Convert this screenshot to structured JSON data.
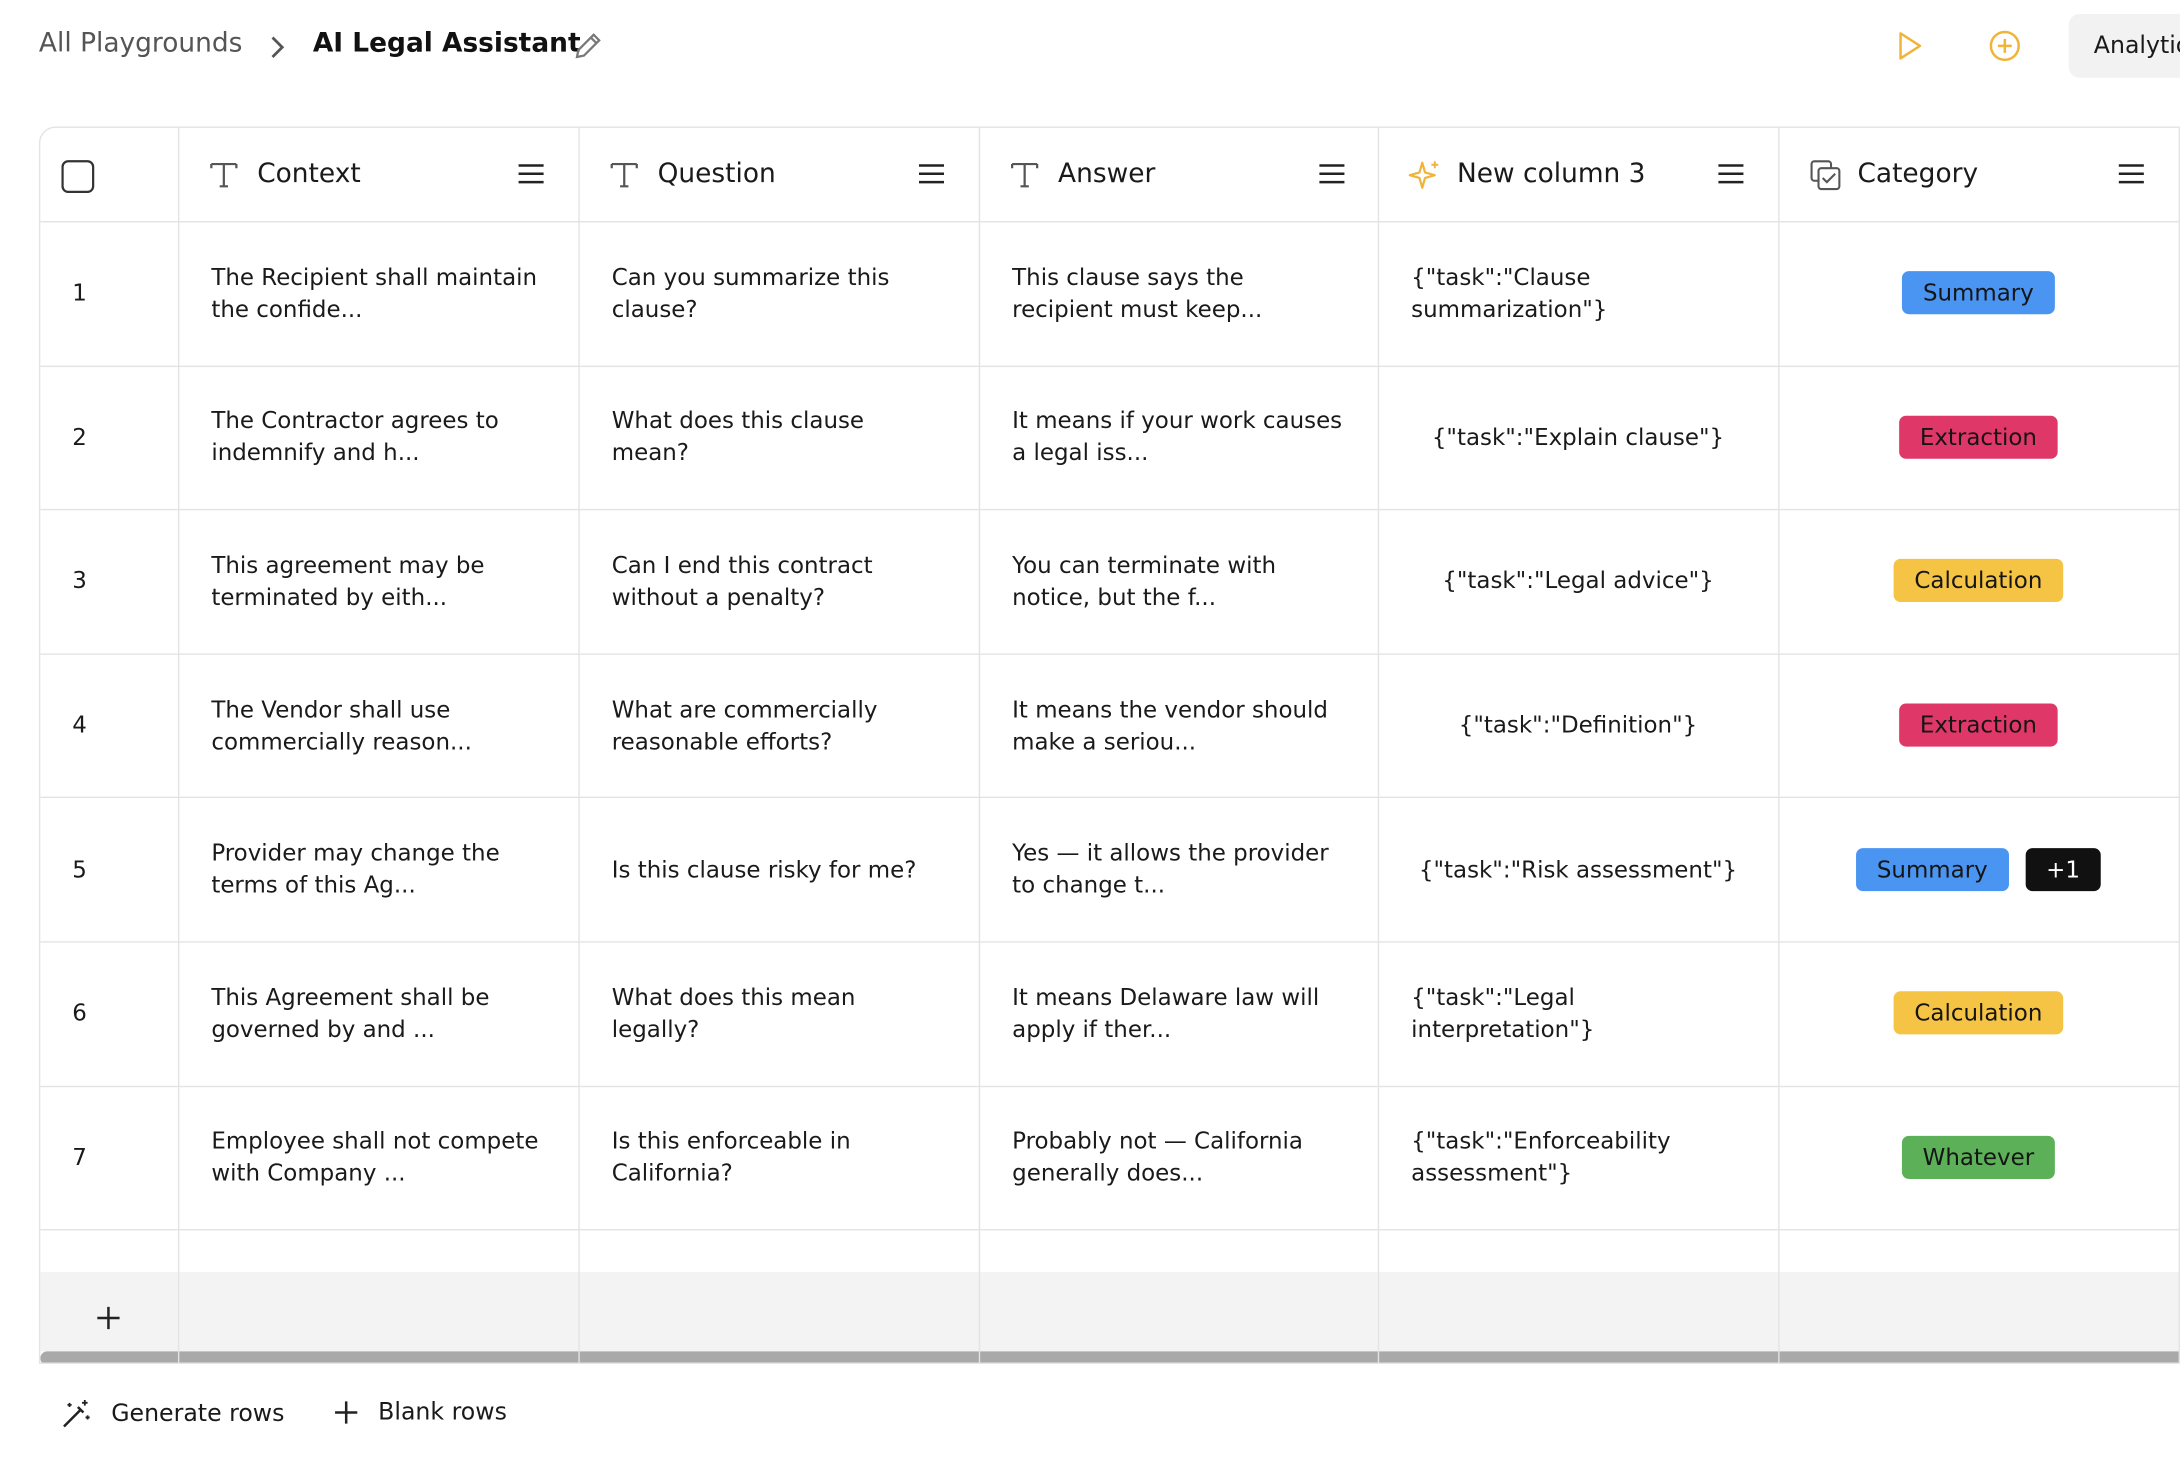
{
  "header": {
    "breadcrumb": "All Playgrounds",
    "title": "AI Legal Assistant",
    "button": "Analytic"
  },
  "table": {
    "columns": [
      "Context",
      "Question",
      "Answer",
      "New column 3",
      "Category"
    ],
    "rows": [
      {
        "number": "1",
        "context": "The Recipient shall maintain the confide...",
        "question": "Can you summarize this clause?",
        "answer": "This clause says the recipient must keep...",
        "task": "{\"task\":\"Clause summarization\"}",
        "categories": [
          {
            "label": "Summary",
            "color": "#4a94f2"
          }
        ]
      },
      {
        "number": "2",
        "context": "The Contractor agrees to indemnify and h...",
        "question": "What does this clause mean?",
        "answer": "It means if your work causes a legal iss...",
        "task": "{\"task\":\"Explain clause\"}",
        "categories": [
          {
            "label": "Extraction",
            "color": "#df3768"
          }
        ]
      },
      {
        "number": "3",
        "context": "This agreement may be terminated by eith...",
        "question": "Can I end this contract without a penalty?",
        "answer": "You can terminate with notice, but the f...",
        "task": "{\"task\":\"Legal advice\"}",
        "categories": [
          {
            "label": "Calculation",
            "color": "#f6c444"
          }
        ]
      },
      {
        "number": "4",
        "context": "The Vendor shall use commercially reason...",
        "question": "What are commercially reasonable efforts?",
        "answer": "It means the vendor should make a seriou...",
        "task": "{\"task\":\"Definition\"}",
        "categories": [
          {
            "label": "Extraction",
            "color": "#df3768"
          }
        ]
      },
      {
        "number": "5",
        "context": "Provider may change the terms of this Ag...",
        "question": "Is this clause risky for me?",
        "answer": "Yes — it allows the provider to change t...",
        "task": "{\"task\":\"Risk assessment\"}",
        "categories": [
          {
            "label": "Summary",
            "color": "#4a94f2"
          },
          {
            "label": "+1",
            "color": "#111111"
          }
        ]
      },
      {
        "number": "6",
        "context": "This Agreement shall be governed by and ...",
        "question": "What does this mean legally?",
        "answer": "It means Delaware law will apply if ther...",
        "task": "{\"task\":\"Legal interpretation\"}",
        "categories": [
          {
            "label": "Calculation",
            "color": "#f6c444"
          }
        ]
      },
      {
        "number": "7",
        "context": "Employee shall not compete with Company ...",
        "question": "Is this enforceable in California?",
        "answer": "Probably not — California generally does...",
        "task": "{\"task\":\"Enforceability assessment\"}",
        "categories": [
          {
            "label": "Whatever",
            "color": "#5cb158"
          }
        ]
      }
    ]
  },
  "footer": {
    "generate": "Generate rows",
    "blank": "Blank rows"
  }
}
